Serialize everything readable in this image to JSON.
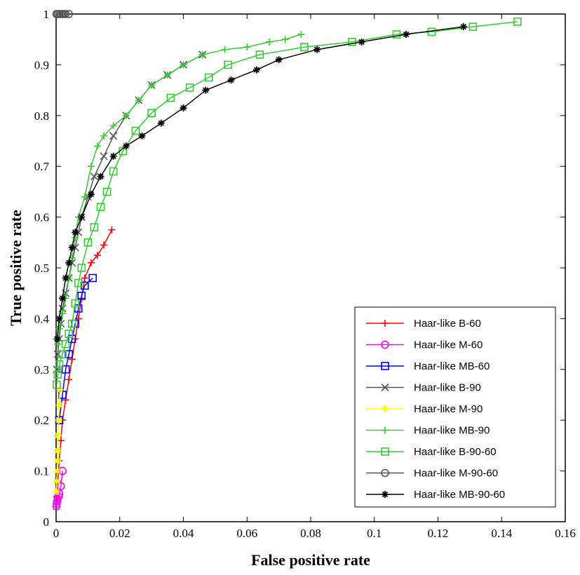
{
  "chart_data": {
    "type": "line",
    "title": "",
    "xlabel": "False positive rate",
    "ylabel": "True positive rate",
    "xlim": [
      0,
      0.16
    ],
    "ylim": [
      0,
      1
    ],
    "x_ticks": [
      "0",
      "0.02",
      "0.04",
      "0.06",
      "0.08",
      "0.1",
      "0.12",
      "0.14",
      "0.16"
    ],
    "y_ticks": [
      "0",
      "0.1",
      "0.2",
      "0.3",
      "0.4",
      "0.5",
      "0.6",
      "0.7",
      "0.8",
      "0.9",
      "1"
    ],
    "legend_position": "bottom-right",
    "grid": false,
    "series": [
      {
        "name": "Haar-like B-60",
        "color": "#ff0000",
        "marker": "plus",
        "x": [
          0.0002,
          0.0005,
          0.001,
          0.0015,
          0.002,
          0.003,
          0.004,
          0.005,
          0.006,
          0.007,
          0.008,
          0.009,
          0.011,
          0.013,
          0.015,
          0.0175
        ],
        "y": [
          0.05,
          0.08,
          0.12,
          0.16,
          0.2,
          0.24,
          0.28,
          0.32,
          0.36,
          0.4,
          0.44,
          0.48,
          0.51,
          0.525,
          0.545,
          0.575
        ]
      },
      {
        "name": "Haar-like M-60",
        "color": "#ff00ff",
        "marker": "circle",
        "x": [
          0.0001,
          0.0002,
          0.0003,
          0.0005,
          0.0008,
          0.001,
          0.0015,
          0.002
        ],
        "y": [
          0.03,
          0.035,
          0.04,
          0.045,
          0.05,
          0.055,
          0.07,
          0.1
        ]
      },
      {
        "name": "Haar-like MB-60",
        "color": "#0000ff",
        "marker": "square",
        "x": [
          0.001,
          0.002,
          0.003,
          0.004,
          0.005,
          0.006,
          0.007,
          0.008,
          0.009,
          0.0115
        ],
        "y": [
          0.2,
          0.25,
          0.3,
          0.33,
          0.36,
          0.39,
          0.42,
          0.445,
          0.465,
          0.48
        ]
      },
      {
        "name": "Haar-like B-90",
        "color": "#555555",
        "marker": "x",
        "x": [
          0.0002,
          0.0005,
          0.001,
          0.0015,
          0.002,
          0.003,
          0.004,
          0.005,
          0.006,
          0.007,
          0.008,
          0.01,
          0.012,
          0.015,
          0.018,
          0.022,
          0.026,
          0.03,
          0.035,
          0.04,
          0.046
        ],
        "y": [
          0.3,
          0.33,
          0.36,
          0.39,
          0.42,
          0.45,
          0.48,
          0.51,
          0.54,
          0.57,
          0.6,
          0.64,
          0.68,
          0.72,
          0.76,
          0.8,
          0.83,
          0.86,
          0.88,
          0.9,
          0.92
        ]
      },
      {
        "name": "Haar-like M-90",
        "color": "#ffff00",
        "marker": "star",
        "x": [
          0.0001,
          0.0002,
          0.0003,
          0.0004,
          0.0005,
          0.0006,
          0.0008,
          0.001,
          0.0012
        ],
        "y": [
          0.06,
          0.08,
          0.1,
          0.12,
          0.14,
          0.17,
          0.2,
          0.23,
          0.26
        ]
      },
      {
        "name": "Haar-like MB-90",
        "color": "#33cc33",
        "marker": "plus",
        "x": [
          0.0005,
          0.001,
          0.002,
          0.003,
          0.004,
          0.005,
          0.006,
          0.007,
          0.009,
          0.011,
          0.013,
          0.015,
          0.018,
          0.022,
          0.026,
          0.03,
          0.035,
          0.04,
          0.046,
          0.053,
          0.06,
          0.067,
          0.072,
          0.077
        ],
        "y": [
          0.35,
          0.38,
          0.41,
          0.44,
          0.48,
          0.52,
          0.56,
          0.6,
          0.64,
          0.7,
          0.74,
          0.76,
          0.78,
          0.8,
          0.83,
          0.86,
          0.88,
          0.9,
          0.92,
          0.93,
          0.935,
          0.945,
          0.95,
          0.96
        ]
      },
      {
        "name": "Haar-like B-90-60",
        "color": "#33cc33",
        "marker": "square",
        "x": [
          0.0002,
          0.0005,
          0.001,
          0.002,
          0.003,
          0.004,
          0.005,
          0.006,
          0.007,
          0.008,
          0.01,
          0.012,
          0.014,
          0.016,
          0.018,
          0.021,
          0.025,
          0.03,
          0.036,
          0.042,
          0.048,
          0.054,
          0.064,
          0.078,
          0.093,
          0.107,
          0.118,
          0.131,
          0.145
        ],
        "y": [
          0.27,
          0.29,
          0.31,
          0.33,
          0.35,
          0.37,
          0.39,
          0.43,
          0.47,
          0.5,
          0.55,
          0.58,
          0.62,
          0.65,
          0.69,
          0.73,
          0.77,
          0.805,
          0.835,
          0.855,
          0.875,
          0.9,
          0.92,
          0.935,
          0.945,
          0.96,
          0.965,
          0.975,
          0.985
        ]
      },
      {
        "name": "Haar-like M-90-60",
        "color": "#555555",
        "marker": "circle",
        "x": [
          0.0001,
          0.0005,
          0.001,
          0.0015,
          0.002,
          0.0025,
          0.003,
          0.004
        ],
        "y": [
          1,
          1,
          1,
          1,
          1,
          1,
          1,
          1
        ]
      },
      {
        "name": "Haar-like MB-90-60",
        "color": "#000000",
        "marker": "star",
        "x": [
          0.0003,
          0.001,
          0.002,
          0.003,
          0.004,
          0.005,
          0.006,
          0.008,
          0.011,
          0.014,
          0.018,
          0.022,
          0.027,
          0.033,
          0.04,
          0.047,
          0.055,
          0.063,
          0.07,
          0.082,
          0.096,
          0.11,
          0.128
        ],
        "y": [
          0.36,
          0.4,
          0.44,
          0.48,
          0.51,
          0.54,
          0.57,
          0.6,
          0.645,
          0.68,
          0.72,
          0.74,
          0.76,
          0.785,
          0.815,
          0.85,
          0.87,
          0.89,
          0.91,
          0.93,
          0.945,
          0.96,
          0.975
        ]
      }
    ]
  }
}
